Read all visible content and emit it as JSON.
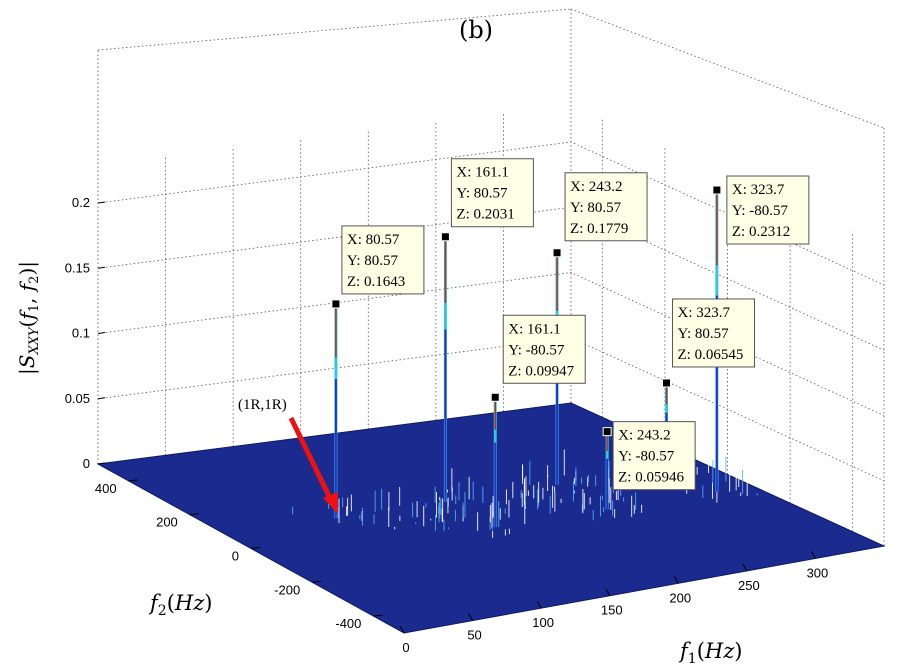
{
  "panel_label": "(b)",
  "chart_data": {
    "type": "surface3d",
    "title": "(b)",
    "xlabel": "f1(Hz)",
    "ylabel": "f2(Hz)",
    "zlabel": "|SXXY(f1, f2)|",
    "xlim": [
      0,
      350
    ],
    "ylim": [
      -500,
      500
    ],
    "zlim": [
      0,
      0.23
    ],
    "x_ticks": [
      "0",
      "50",
      "100",
      "150",
      "200",
      "250",
      "300"
    ],
    "y_ticks": [
      "400",
      "200",
      "0",
      "-200",
      "-400"
    ],
    "z_ticks": [
      "0",
      "0.05",
      "0.1",
      "0.15",
      "0.2"
    ],
    "grid": true,
    "surface_color": "#1b2a8e",
    "peaks": [
      {
        "x": 80.57,
        "y": 80.57,
        "z": 0.1643,
        "label": [
          "X: 80.57",
          "Y: 80.57",
          "Z: 0.1643"
        ]
      },
      {
        "x": 161.1,
        "y": 80.57,
        "z": 0.2031,
        "label": [
          "X: 161.1",
          "Y: 80.57",
          "Z: 0.2031"
        ]
      },
      {
        "x": 243.2,
        "y": 80.57,
        "z": 0.1779,
        "label": [
          "X: 243.2",
          "Y: 80.57",
          "Z: 0.1779"
        ]
      },
      {
        "x": 323.7,
        "y": -80.57,
        "z": 0.2312,
        "label": [
          "X: 323.7",
          "Y: -80.57",
          "Z: 0.2312"
        ]
      },
      {
        "x": 323.7,
        "y": 80.57,
        "z": 0.06545,
        "label": [
          "X: 323.7",
          "Y: 80.57",
          "Z: 0.06545"
        ]
      },
      {
        "x": 161.1,
        "y": -80.57,
        "z": 0.09947,
        "label": [
          "X: 161.1",
          "Y: -80.57",
          "Z: 0.09947"
        ]
      },
      {
        "x": 243.2,
        "y": -80.57,
        "z": 0.05946,
        "label": [
          "X: 243.2",
          "Y: -80.57",
          "Z: 0.05946"
        ]
      }
    ],
    "annotation": {
      "text": "(1R,1R)",
      "x": 80.57,
      "y": 80.57,
      "arrow_color": "#ee1111"
    }
  }
}
